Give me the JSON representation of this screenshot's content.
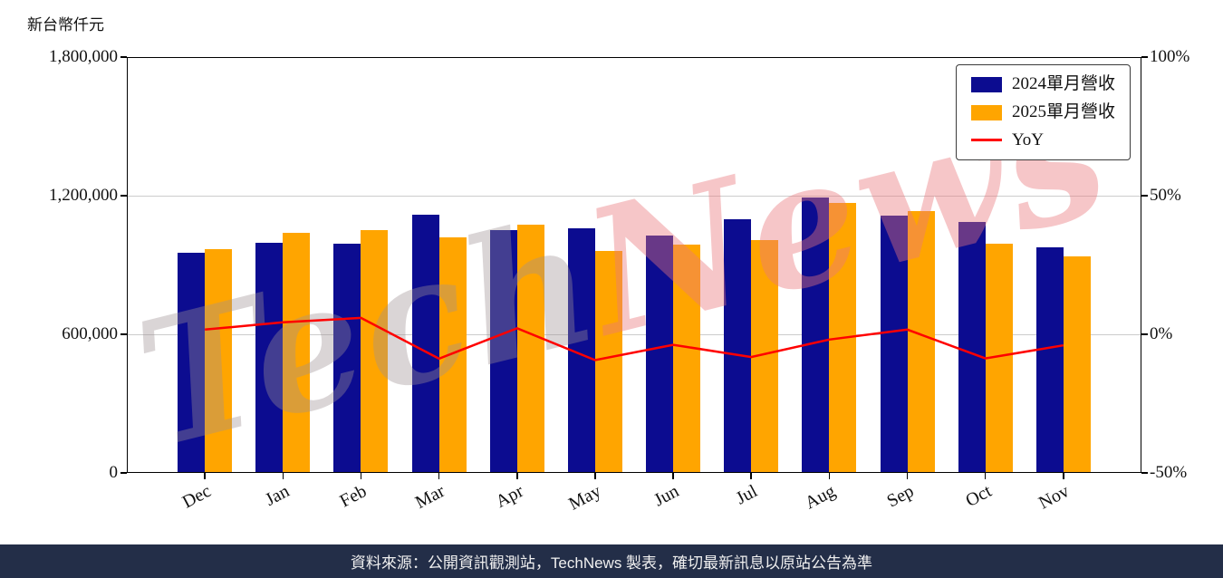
{
  "header": {
    "unit_label": "新台幣仟元"
  },
  "watermark": {
    "part1": "Tech",
    "part2": "News",
    "color1": "rgba(158,145,148,0.38)",
    "color2": "rgba(233,120,124,0.42)"
  },
  "footer": {
    "text": "資料來源：公開資訊觀測站，TechNews 製表，確切最新訊息以原站公告為準",
    "bg": "#232e48",
    "text_color": "#f0f0f0"
  },
  "chart_data": {
    "type": "bar",
    "title": "",
    "xlabel": "",
    "ylabel_left": "新台幣仟元",
    "ylabel_right": "%",
    "grid": true,
    "legend_position": "upper-right",
    "categories": [
      "Dec",
      "Jan",
      "Feb",
      "Mar",
      "Apr",
      "May",
      "Jun",
      "Jul",
      "Aug",
      "Sep",
      "Oct",
      "Nov"
    ],
    "series": [
      {
        "key": "2024",
        "name": "2024單月營收",
        "type": "bar",
        "axis": "left",
        "color": "#0c0c90",
        "values": [
          953000,
          996000,
          992000,
          1118000,
          1051000,
          1059000,
          1027000,
          1098000,
          1192000,
          1114000,
          1086000,
          976000
        ]
      },
      {
        "key": "2025",
        "name": "2025單月營收",
        "type": "bar",
        "axis": "left",
        "color": "#ffa500",
        "values": [
          969000,
          1039000,
          1051000,
          1020000,
          1074000,
          961000,
          988000,
          1008000,
          1169000,
          1133000,
          992000,
          937000
        ]
      },
      {
        "key": "yoy",
        "name": "YoY",
        "type": "line",
        "axis": "right",
        "color": "#ff0000",
        "values": [
          1.7,
          4.3,
          5.9,
          -8.8,
          2.2,
          -9.3,
          -3.8,
          -8.2,
          -1.9,
          1.7,
          -8.7,
          -4.0
        ]
      }
    ],
    "left_axis": {
      "min": 0,
      "max": 1800000,
      "tick_values": [
        0,
        600000,
        1200000,
        1800000
      ],
      "tick_labels": [
        "0",
        "600,000",
        "1,200,000",
        "1,800,000"
      ]
    },
    "right_axis": {
      "min": -50,
      "max": 100,
      "tick_values": [
        -50,
        0,
        50,
        100
      ],
      "tick_labels": [
        "-50%",
        "0%",
        "50%",
        "100%"
      ]
    }
  }
}
